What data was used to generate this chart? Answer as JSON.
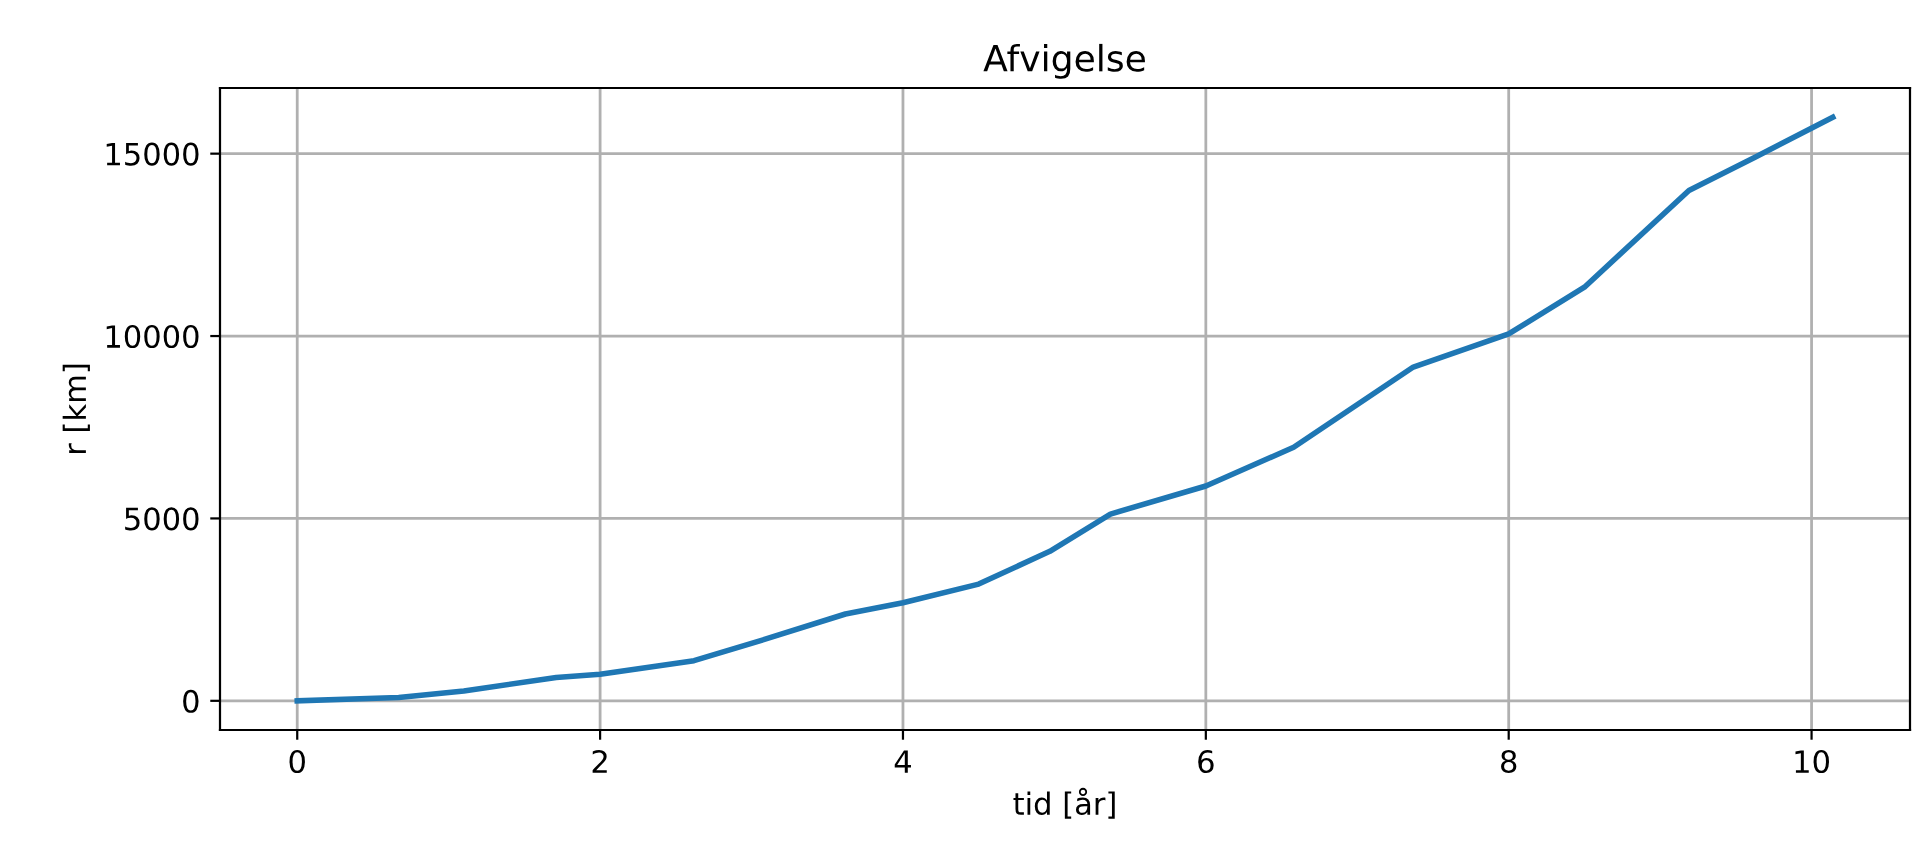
{
  "chart_data": {
    "type": "line",
    "title": "Afvigelse",
    "xlabel": "tid [år]",
    "ylabel": "r [km]",
    "series": [
      {
        "color": "#1f77b4",
        "x": [
          0,
          0.67,
          1.1,
          1.71,
          2.0,
          2.62,
          3.06,
          3.62,
          4.0,
          4.5,
          4.97,
          5.37,
          6.0,
          6.58,
          7.37,
          8.0,
          8.5,
          9.19,
          9.63,
          10.14
        ],
        "values": [
          0,
          90,
          270,
          640,
          730,
          1100,
          1650,
          2380,
          2690,
          3200,
          4100,
          5120,
          5890,
          6950,
          9150,
          10060,
          11340,
          13990,
          14910,
          16000
        ]
      }
    ],
    "xlim": [
      -0.51,
      10.65
    ],
    "ylim": [
      -800,
      16800
    ],
    "xticks": [
      0,
      2,
      4,
      6,
      8,
      10
    ],
    "yticks": [
      0,
      5000,
      10000,
      15000
    ],
    "grid": true,
    "line_style": "solid",
    "marker": "none"
  }
}
